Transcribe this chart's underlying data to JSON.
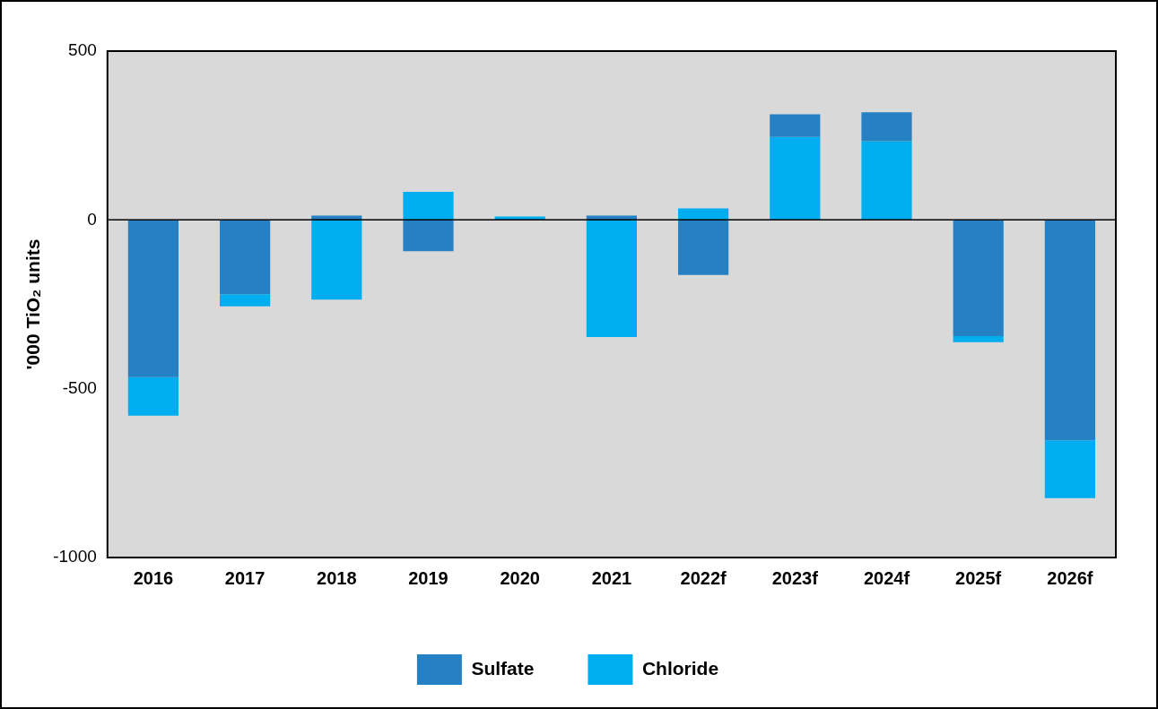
{
  "chart_data": {
    "type": "bar",
    "ylabel": "'000 TiO₂ units",
    "categories": [
      "2016",
      "2017",
      "2018",
      "2019",
      "2020",
      "2021",
      "2022f",
      "2023f",
      "2024f",
      "2025f",
      "2026f"
    ],
    "series": [
      {
        "name": "Sulfate",
        "color": "#2581c4",
        "values": [
          -466,
          -220,
          13,
          -93,
          0,
          13,
          -163,
          67,
          86,
          -344,
          -653
        ]
      },
      {
        "name": "Chloride",
        "color": "#00adef",
        "values": [
          -114,
          -36,
          -236,
          83,
          10,
          -347,
          34,
          246,
          233,
          -18,
          -171
        ]
      }
    ],
    "stacked": true,
    "ylim": [
      -1000,
      500
    ],
    "yticks": [
      -1000,
      -500,
      0,
      500
    ],
    "grid": false,
    "legend": "bottom",
    "ref_lines": [
      {
        "axis": "y",
        "value": 0,
        "color": "#000000"
      }
    ]
  }
}
